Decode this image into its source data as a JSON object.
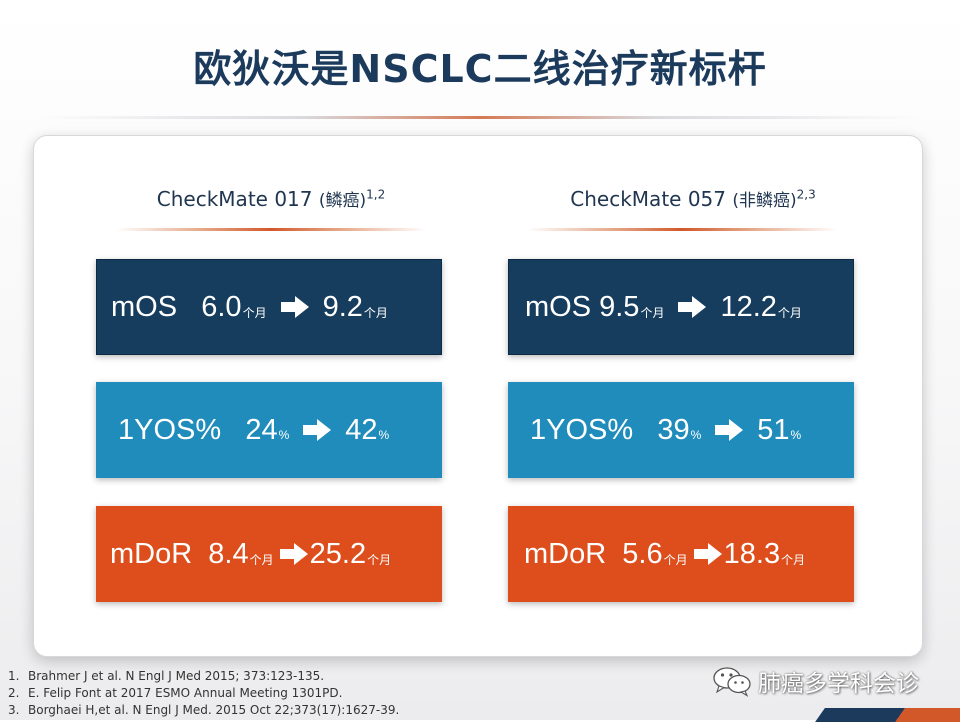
{
  "title": "欧狄沃是NSCLC二线治疗新标杆",
  "columns": [
    {
      "heading": "CheckMate 017 ",
      "subtype": "(鳞癌)",
      "refs_sup": "1,2",
      "metrics": [
        {
          "name": "mOS   ",
          "from": "6.0",
          "from_unit": "个月",
          "to": "9.2",
          "to_unit": "个月"
        },
        {
          "name": "1YOS%   ",
          "from": "24",
          "from_unit": "%",
          "to": "42",
          "to_unit": "%"
        },
        {
          "name": "mDoR  ",
          "from": "8.4",
          "from_unit": "个月",
          "to": "25.2",
          "to_unit": "个月"
        }
      ]
    },
    {
      "heading": "CheckMate 057 ",
      "subtype": "(非鳞癌)",
      "refs_sup": "2,3",
      "metrics": [
        {
          "name": "mOS ",
          "from": "9.5",
          "from_unit": "个月",
          "to": "12.2",
          "to_unit": "个月"
        },
        {
          "name": "1YOS%   ",
          "from": "39",
          "from_unit": "%",
          "to": "51",
          "to_unit": "%"
        },
        {
          "name": "mDoR  ",
          "from": "5.6",
          "from_unit": "个月",
          "to": "18.3",
          "to_unit": "个月"
        }
      ]
    }
  ],
  "references": [
    {
      "num": "1.",
      "text": "Brahmer J et al. N Engl J Med 2015; 373:123-135."
    },
    {
      "num": "2.",
      "text": "E. Felip Font at 2017 ESMO Annual Meeting  1301PD."
    },
    {
      "num": "3.",
      "text": "Borghaei H,et al. N Engl J Med. 2015 Oct 22;373(17):1627-39."
    }
  ],
  "watermark": {
    "text": "肺癌多学科会诊",
    "icon": "wechat-icon"
  },
  "colors": {
    "title": "#1b3a5c",
    "mos_box": "#173d5e",
    "yos_box": "#1f8cbc",
    "dor_box": "#dd4e1c",
    "accent": "#d2582a"
  }
}
